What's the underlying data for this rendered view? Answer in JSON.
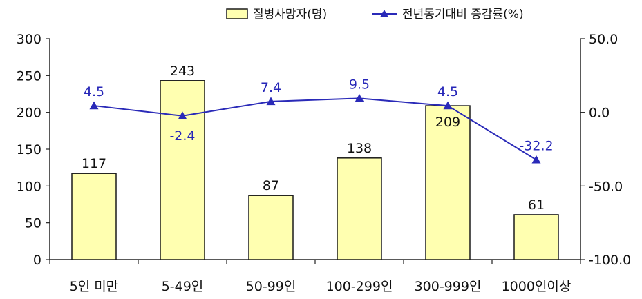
{
  "chart_data": {
    "type": "bar",
    "categories": [
      "5인 미만",
      "5-49인",
      "50-99인",
      "100-299인",
      "300-999인",
      "1000인이상"
    ],
    "series": [
      {
        "name": "질병사망자(명)",
        "type": "bar",
        "axis": "left",
        "values": [
          117,
          243,
          87,
          138,
          209,
          61
        ],
        "labels": [
          "117",
          "243",
          "87",
          "138",
          "209",
          "61"
        ]
      },
      {
        "name": "전년동기대비 증감률(%)",
        "type": "line",
        "axis": "right",
        "values": [
          4.5,
          -2.4,
          7.4,
          9.5,
          4.5,
          -32.2
        ],
        "labels": [
          "4.5",
          "-2.4",
          "7.4",
          "9.5",
          "4.5",
          "-32.2"
        ]
      }
    ],
    "left_axis": {
      "ylim": [
        0,
        300
      ],
      "ticks": [
        "0",
        "50",
        "100",
        "150",
        "200",
        "250",
        "300"
      ],
      "tick_values": [
        0,
        50,
        100,
        150,
        200,
        250,
        300
      ]
    },
    "right_axis": {
      "ylim": [
        -100,
        50
      ],
      "ticks": [
        "-100.0",
        "-50.0",
        "0.0",
        "50.0"
      ],
      "tick_values": [
        -100,
        -50,
        0,
        50
      ]
    },
    "legend": "top",
    "grid": false,
    "colors": {
      "bar_fill": "#ffffb0",
      "bar_stroke": "#1a1a1a",
      "line": "#2a2ab8",
      "marker": "#2a2ab8",
      "line_label": "#2727b8"
    }
  }
}
